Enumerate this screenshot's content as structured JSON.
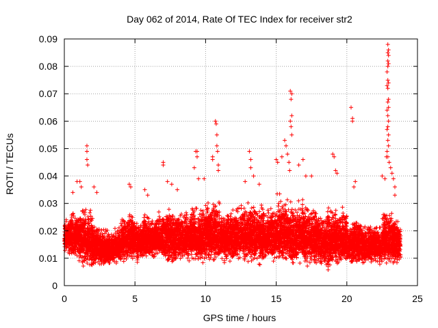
{
  "chart_data": {
    "type": "scatter",
    "title": "Day 062 of 2014, Rate Of TEC Index for receiver str2",
    "xlabel": "GPS time / hours",
    "ylabel": "ROTI / TECUs",
    "xlim": [
      0,
      25
    ],
    "ylim": [
      0,
      0.09
    ],
    "xticks": [
      0,
      5,
      10,
      15,
      20,
      25
    ],
    "xtick_labels": [
      "0",
      "5",
      "10",
      "15",
      "20",
      "25"
    ],
    "yticks": [
      0,
      0.01,
      0.02,
      0.03,
      0.04,
      0.05,
      0.06,
      0.07,
      0.08,
      0.09
    ],
    "ytick_labels": [
      "0",
      "0.01",
      "0.02",
      "0.03",
      "0.04",
      "0.05",
      "0.06",
      "0.07",
      "0.08",
      "0.09"
    ],
    "grid": true,
    "marker": "+",
    "colors": {
      "points": "#ff0000",
      "grid": "#a0a0a0",
      "axis": "#000000"
    },
    "series": [
      {
        "name": "ROTI",
        "note": "dense point cloud; envelope per 0.5 h bin (x = bin center hours, y in TECU/s)",
        "envelope": {
          "x": [
            0.25,
            0.75,
            1.25,
            1.75,
            2.25,
            2.75,
            3.25,
            3.75,
            4.25,
            4.75,
            5.25,
            5.75,
            6.25,
            6.75,
            7.25,
            7.75,
            8.25,
            8.75,
            9.25,
            9.75,
            10.25,
            10.75,
            11.25,
            11.75,
            12.25,
            12.75,
            13.25,
            13.75,
            14.25,
            14.75,
            15.25,
            15.75,
            16.25,
            16.75,
            17.25,
            17.75,
            18.25,
            18.75,
            19.25,
            19.75,
            20.25,
            20.75,
            21.25,
            21.75,
            22.25,
            22.75,
            23.25,
            23.75
          ],
          "low": [
            0.011,
            0.009,
            0.006,
            0.006,
            0.006,
            0.006,
            0.007,
            0.007,
            0.008,
            0.008,
            0.008,
            0.009,
            0.009,
            0.009,
            0.007,
            0.007,
            0.008,
            0.008,
            0.007,
            0.007,
            0.007,
            0.007,
            0.007,
            0.007,
            0.007,
            0.008,
            0.007,
            0.007,
            0.007,
            0.007,
            0.007,
            0.007,
            0.006,
            0.006,
            0.006,
            0.006,
            0.005,
            0.005,
            0.006,
            0.006,
            0.007,
            0.007,
            0.007,
            0.007,
            0.007,
            0.007,
            0.006,
            0.006
          ],
          "high": [
            0.026,
            0.029,
            0.031,
            0.029,
            0.024,
            0.022,
            0.021,
            0.022,
            0.026,
            0.028,
            0.026,
            0.027,
            0.026,
            0.028,
            0.03,
            0.029,
            0.028,
            0.029,
            0.031,
            0.031,
            0.032,
            0.033,
            0.029,
            0.03,
            0.03,
            0.031,
            0.032,
            0.031,
            0.03,
            0.032,
            0.034,
            0.034,
            0.032,
            0.033,
            0.031,
            0.03,
            0.029,
            0.03,
            0.031,
            0.03,
            0.024,
            0.026,
            0.023,
            0.024,
            0.023,
            0.029,
            0.028,
            0.026
          ]
        },
        "outliers": [
          [
            0.6,
            0.034
          ],
          [
            0.9,
            0.038
          ],
          [
            1.1,
            0.038
          ],
          [
            1.2,
            0.036
          ],
          [
            1.6,
            0.051
          ],
          [
            1.6,
            0.049
          ],
          [
            1.6,
            0.046
          ],
          [
            1.65,
            0.044
          ],
          [
            2.1,
            0.036
          ],
          [
            2.3,
            0.034
          ],
          [
            4.6,
            0.037
          ],
          [
            4.7,
            0.036
          ],
          [
            5.7,
            0.035
          ],
          [
            5.9,
            0.033
          ],
          [
            7.0,
            0.045
          ],
          [
            7.0,
            0.044
          ],
          [
            7.3,
            0.038
          ],
          [
            7.6,
            0.037
          ],
          [
            8.0,
            0.035
          ],
          [
            9.2,
            0.043
          ],
          [
            9.3,
            0.049
          ],
          [
            9.4,
            0.049
          ],
          [
            9.4,
            0.047
          ],
          [
            9.5,
            0.039
          ],
          [
            9.9,
            0.039
          ],
          [
            10.5,
            0.047
          ],
          [
            10.5,
            0.046
          ],
          [
            10.7,
            0.06
          ],
          [
            10.75,
            0.059
          ],
          [
            10.8,
            0.055
          ],
          [
            10.8,
            0.051
          ],
          [
            10.85,
            0.049
          ],
          [
            10.9,
            0.044
          ],
          [
            10.9,
            0.042
          ],
          [
            12.8,
            0.038
          ],
          [
            13.1,
            0.049
          ],
          [
            13.2,
            0.046
          ],
          [
            13.2,
            0.043
          ],
          [
            13.4,
            0.04
          ],
          [
            13.8,
            0.037
          ],
          [
            15.0,
            0.046
          ],
          [
            15.1,
            0.045
          ],
          [
            15.4,
            0.047
          ],
          [
            15.6,
            0.053
          ],
          [
            15.7,
            0.051
          ],
          [
            15.8,
            0.048
          ],
          [
            15.9,
            0.045
          ],
          [
            15.95,
            0.042
          ],
          [
            16.0,
            0.071
          ],
          [
            16.1,
            0.07
          ],
          [
            16.05,
            0.068
          ],
          [
            16.1,
            0.062
          ],
          [
            16.0,
            0.06
          ],
          [
            16.05,
            0.058
          ],
          [
            16.1,
            0.055
          ],
          [
            16.6,
            0.044
          ],
          [
            16.9,
            0.046
          ],
          [
            17.1,
            0.04
          ],
          [
            17.5,
            0.04
          ],
          [
            19.0,
            0.048
          ],
          [
            19.1,
            0.047
          ],
          [
            19.2,
            0.042
          ],
          [
            19.3,
            0.041
          ],
          [
            20.3,
            0.065
          ],
          [
            20.4,
            0.061
          ],
          [
            20.4,
            0.06
          ],
          [
            20.6,
            0.038
          ],
          [
            20.5,
            0.036
          ],
          [
            22.5,
            0.04
          ],
          [
            22.7,
            0.039
          ],
          [
            22.8,
            0.047
          ],
          [
            22.9,
            0.088
          ],
          [
            22.95,
            0.086
          ],
          [
            22.9,
            0.085
          ],
          [
            22.95,
            0.084
          ],
          [
            22.9,
            0.082
          ],
          [
            22.95,
            0.081
          ],
          [
            22.9,
            0.08
          ],
          [
            22.85,
            0.078
          ],
          [
            22.9,
            0.075
          ],
          [
            22.95,
            0.074
          ],
          [
            22.85,
            0.073
          ],
          [
            22.9,
            0.072
          ],
          [
            22.95,
            0.068
          ],
          [
            22.9,
            0.067
          ],
          [
            22.95,
            0.065
          ],
          [
            22.85,
            0.064
          ],
          [
            22.9,
            0.062
          ],
          [
            22.95,
            0.06
          ],
          [
            22.9,
            0.058
          ],
          [
            22.85,
            0.057
          ],
          [
            22.95,
            0.055
          ],
          [
            22.9,
            0.053
          ],
          [
            22.95,
            0.051
          ],
          [
            22.85,
            0.049
          ],
          [
            22.9,
            0.047
          ],
          [
            23.0,
            0.045
          ],
          [
            23.1,
            0.043
          ],
          [
            23.2,
            0.041
          ],
          [
            23.3,
            0.039
          ],
          [
            23.4,
            0.036
          ],
          [
            23.4,
            0.033
          ]
        ]
      }
    ]
  }
}
